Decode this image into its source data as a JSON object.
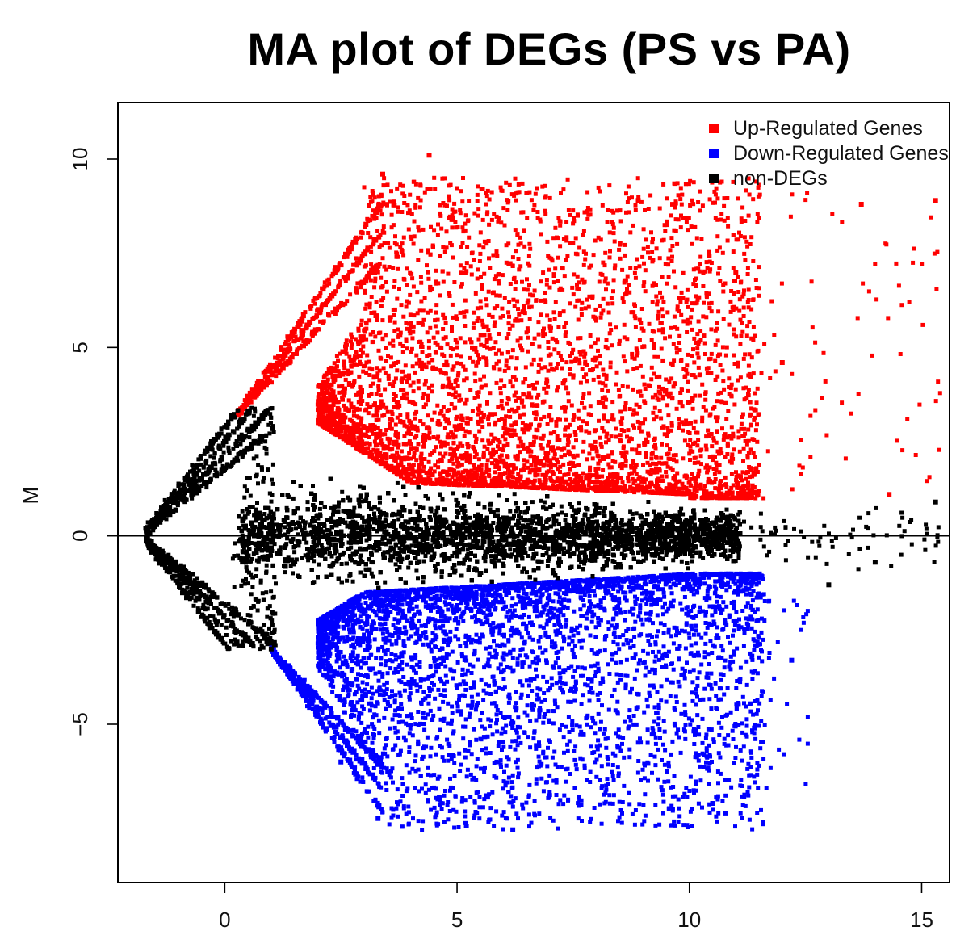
{
  "chart_data": {
    "type": "scatter",
    "title": "MA plot of DEGs (PS vs PA)",
    "xlabel": "",
    "ylabel": "M",
    "xlim": [
      -2.3,
      15.6
    ],
    "ylim": [
      -9.2,
      11.5
    ],
    "x_ticks": [
      0,
      5,
      10,
      15
    ],
    "y_ticks": [
      -5,
      0,
      5,
      10
    ],
    "x_tick_labels": [
      "0",
      "5",
      "10",
      "15"
    ],
    "y_tick_labels": [
      "−5",
      "0",
      "5",
      "10"
    ],
    "reference_line_y": 0,
    "grid": false,
    "legend_position": "top-right",
    "colors": {
      "up": "#ff0000",
      "down": "#0000ff",
      "non": "#000000"
    },
    "series": [
      {
        "name": "Up-Regulated Genes",
        "color": "#ff0000",
        "x_range": [
          0.2,
          15.4
        ],
        "y_range": [
          1.0,
          10.1
        ],
        "sample_points": [
          [
            3.4,
            9.6
          ],
          [
            4.4,
            10.1
          ],
          [
            6.5,
            9.1
          ],
          [
            8.9,
            8.9
          ],
          [
            13.7,
            8.8
          ],
          [
            15.3,
            8.9
          ],
          [
            11.0,
            7.0
          ],
          [
            12.0,
            4.6
          ],
          [
            14.3,
            1.1
          ],
          [
            7.0,
            2.0
          ]
        ]
      },
      {
        "name": "Down-Regulated Genes",
        "color": "#0000ff",
        "x_range": [
          1.0,
          12.5
        ],
        "y_range": [
          -7.9,
          -1.0
        ],
        "sample_points": [
          [
            3.3,
            -7.5
          ],
          [
            5.2,
            -7.7
          ],
          [
            6.2,
            -7.8
          ],
          [
            10.5,
            -7.1
          ],
          [
            11.4,
            -5.1
          ],
          [
            12.2,
            -3.3
          ],
          [
            7.0,
            -2.0
          ],
          [
            2.5,
            -6.0
          ]
        ]
      },
      {
        "name": "non-DEGs",
        "color": "#000000",
        "x_range": [
          -1.7,
          15.4
        ],
        "y_range": [
          -3.0,
          3.4
        ],
        "sample_points": [
          [
            -1.7,
            0.2
          ],
          [
            15.3,
            0.9
          ],
          [
            13.0,
            -1.3
          ],
          [
            14.0,
            -0.7
          ],
          [
            0.5,
            3.3
          ],
          [
            1.0,
            -3.0
          ],
          [
            6.0,
            0.0
          ]
        ]
      }
    ]
  }
}
